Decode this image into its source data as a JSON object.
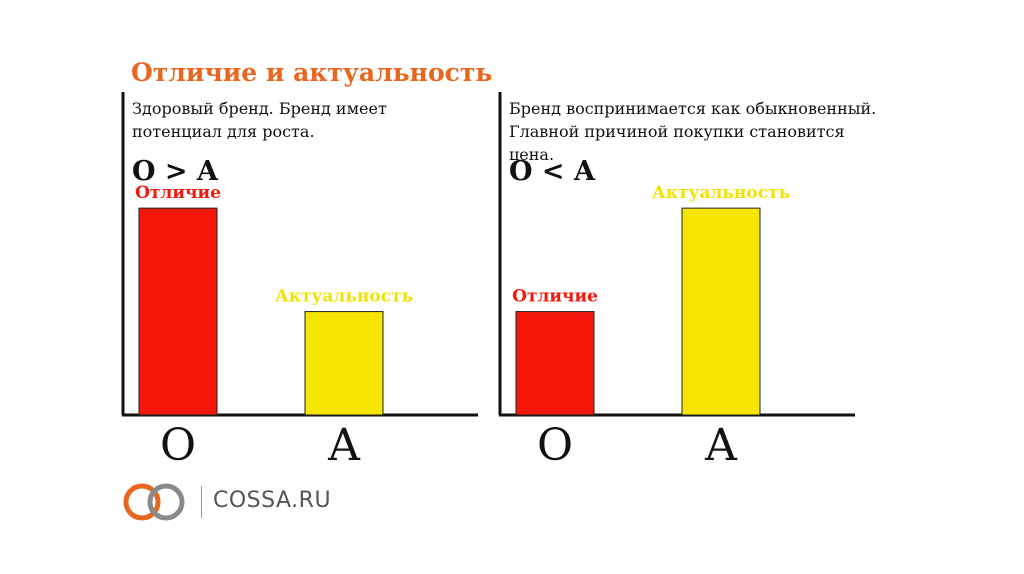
{
  "title": "Отличие и актуальность",
  "colors": {
    "title": "#e8661e",
    "series_o": "#f5180a",
    "series_a": "#f5e500",
    "label_a": "#f2e200",
    "axis": "#111111"
  },
  "logo": {
    "text": "COSSA.RU",
    "icon": "infinity-rings-icon"
  },
  "chart_data": [
    {
      "type": "bar",
      "description": "Здоровый бренд. Бренд имеет\nпотенциал для роста.",
      "formula": "O > A",
      "categories": [
        "O",
        "A"
      ],
      "values": [
        3,
        1.5
      ],
      "bar_labels": [
        "Отличие",
        "Актуальность"
      ],
      "ylim": [
        0,
        3.35
      ],
      "grid": false
    },
    {
      "type": "bar",
      "description": "Бренд воспринимается как обыкновенный.\nГлавной причиной покупки становится цена.",
      "formula": "O < A",
      "categories": [
        "O",
        "A"
      ],
      "values": [
        1.5,
        3
      ],
      "bar_labels": [
        "Отличие",
        "Актуальность"
      ],
      "ylim": [
        0,
        3.35
      ],
      "grid": false
    }
  ]
}
